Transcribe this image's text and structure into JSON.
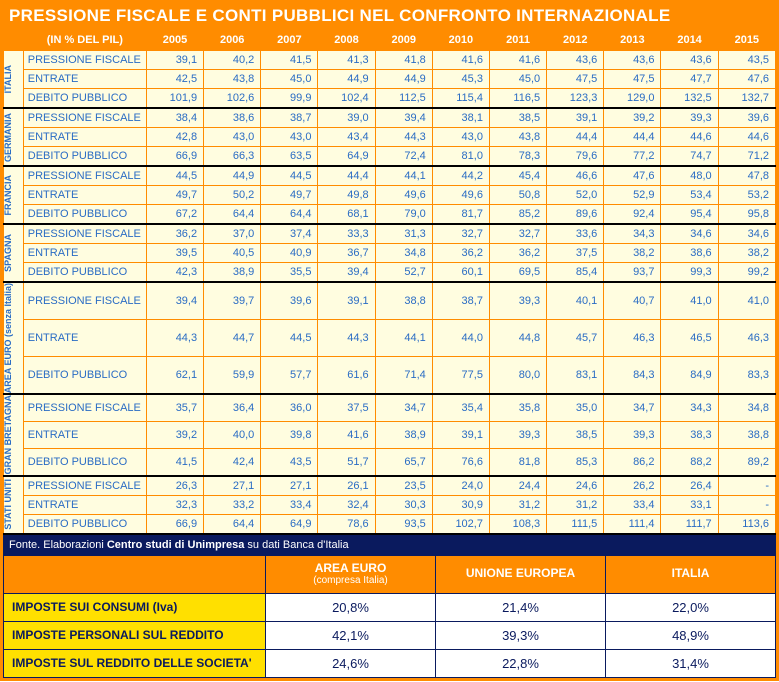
{
  "title": "PRESSIONE FISCALE E CONTI PUBBLICI NEL CONFRONTO INTERNAZIONALE",
  "caption": "(IN % DEL PIL)",
  "years": [
    "2005",
    "2006",
    "2007",
    "2008",
    "2009",
    "2010",
    "2011",
    "2012",
    "2013",
    "2014",
    "2015"
  ],
  "metrics": [
    "PRESSIONE FISCALE",
    "ENTRATE",
    "DEBITO PUBBLICO"
  ],
  "groups": [
    {
      "name": "ITALIA",
      "rows": [
        [
          "39,1",
          "40,2",
          "41,5",
          "41,3",
          "41,8",
          "41,6",
          "41,6",
          "43,6",
          "43,6",
          "43,6",
          "43,5"
        ],
        [
          "42,5",
          "43,8",
          "45,0",
          "44,9",
          "44,9",
          "45,3",
          "45,0",
          "47,5",
          "47,5",
          "47,7",
          "47,6"
        ],
        [
          "101,9",
          "102,6",
          "99,9",
          "102,4",
          "112,5",
          "115,4",
          "116,5",
          "123,3",
          "129,0",
          "132,5",
          "132,7"
        ]
      ]
    },
    {
      "name": "GERMANIA",
      "rows": [
        [
          "38,4",
          "38,6",
          "38,7",
          "39,0",
          "39,4",
          "38,1",
          "38,5",
          "39,1",
          "39,2",
          "39,3",
          "39,6"
        ],
        [
          "42,8",
          "43,0",
          "43,0",
          "43,4",
          "44,3",
          "43,0",
          "43,8",
          "44,4",
          "44,4",
          "44,6",
          "44,6"
        ],
        [
          "66,9",
          "66,3",
          "63,5",
          "64,9",
          "72,4",
          "81,0",
          "78,3",
          "79,6",
          "77,2",
          "74,7",
          "71,2"
        ]
      ]
    },
    {
      "name": "FRANCIA",
      "rows": [
        [
          "44,5",
          "44,9",
          "44,5",
          "44,4",
          "44,1",
          "44,2",
          "45,4",
          "46,6",
          "47,6",
          "48,0",
          "47,8"
        ],
        [
          "49,7",
          "50,2",
          "49,7",
          "49,8",
          "49,6",
          "49,6",
          "50,8",
          "52,0",
          "52,9",
          "53,4",
          "53,2"
        ],
        [
          "67,2",
          "64,4",
          "64,4",
          "68,1",
          "79,0",
          "81,7",
          "85,2",
          "89,6",
          "92,4",
          "95,4",
          "95,8"
        ]
      ]
    },
    {
      "name": "SPAGNA",
      "rows": [
        [
          "36,2",
          "37,0",
          "37,4",
          "33,3",
          "31,3",
          "32,7",
          "32,7",
          "33,6",
          "34,3",
          "34,6",
          "34,6"
        ],
        [
          "39,5",
          "40,5",
          "40,9",
          "36,7",
          "34,8",
          "36,2",
          "36,2",
          "37,5",
          "38,2",
          "38,6",
          "38,2"
        ],
        [
          "42,3",
          "38,9",
          "35,5",
          "39,4",
          "52,7",
          "60,1",
          "69,5",
          "85,4",
          "93,7",
          "99,3",
          "99,2"
        ]
      ]
    },
    {
      "name": "AREA EURO (senza Italia)",
      "rows": [
        [
          "39,4",
          "39,7",
          "39,6",
          "39,1",
          "38,8",
          "38,7",
          "39,3",
          "40,1",
          "40,7",
          "41,0",
          "41,0"
        ],
        [
          "44,3",
          "44,7",
          "44,5",
          "44,3",
          "44,1",
          "44,0",
          "44,8",
          "45,7",
          "46,3",
          "46,5",
          "46,3"
        ],
        [
          "62,1",
          "59,9",
          "57,7",
          "61,6",
          "71,4",
          "77,5",
          "80,0",
          "83,1",
          "84,3",
          "84,9",
          "83,3"
        ]
      ]
    },
    {
      "name": "GRAN BRETAGNA",
      "rows": [
        [
          "35,7",
          "36,4",
          "36,0",
          "37,5",
          "34,7",
          "35,4",
          "35,8",
          "35,0",
          "34,7",
          "34,3",
          "34,8"
        ],
        [
          "39,2",
          "40,0",
          "39,8",
          "41,6",
          "38,9",
          "39,1",
          "39,3",
          "38,5",
          "39,3",
          "38,3",
          "38,8"
        ],
        [
          "41,5",
          "42,4",
          "43,5",
          "51,7",
          "65,7",
          "76,6",
          "81,8",
          "85,3",
          "86,2",
          "88,2",
          "89,2"
        ]
      ]
    },
    {
      "name": "STATI UNITI",
      "rows": [
        [
          "26,3",
          "27,1",
          "27,1",
          "26,1",
          "23,5",
          "24,0",
          "24,4",
          "24,6",
          "26,2",
          "26,4",
          "-"
        ],
        [
          "32,3",
          "33,2",
          "33,4",
          "32,4",
          "30,3",
          "30,9",
          "31,2",
          "31,2",
          "33,4",
          "33,1",
          "-"
        ],
        [
          "66,9",
          "64,4",
          "64,9",
          "78,6",
          "93,5",
          "102,7",
          "108,3",
          "111,5",
          "111,4",
          "111,7",
          "113,6"
        ]
      ]
    }
  ],
  "source": {
    "prefix": "Fonte. Elaborazioni ",
    "bold": "Centro studi di Unimpresa",
    "suffix": " su dati Banca d'Italia"
  },
  "bottom": {
    "headers": [
      {
        "main": "AREA EURO",
        "sub": "(compresa Italia)"
      },
      {
        "main": "UNIONE EUROPEA",
        "sub": ""
      },
      {
        "main": "ITALIA",
        "sub": ""
      }
    ],
    "rows": [
      {
        "label": "IMPOSTE SUI CONSUMI (Iva)",
        "vals": [
          "20,8%",
          "21,4%",
          "22,0%"
        ]
      },
      {
        "label": "IMPOSTE PERSONALI SUL REDDITO",
        "vals": [
          "42,1%",
          "39,3%",
          "48,9%"
        ]
      },
      {
        "label": "IMPOSTE SUL REDDITO DELLE SOCIETA'",
        "vals": [
          "24,6%",
          "22,8%",
          "31,4%"
        ]
      }
    ]
  }
}
